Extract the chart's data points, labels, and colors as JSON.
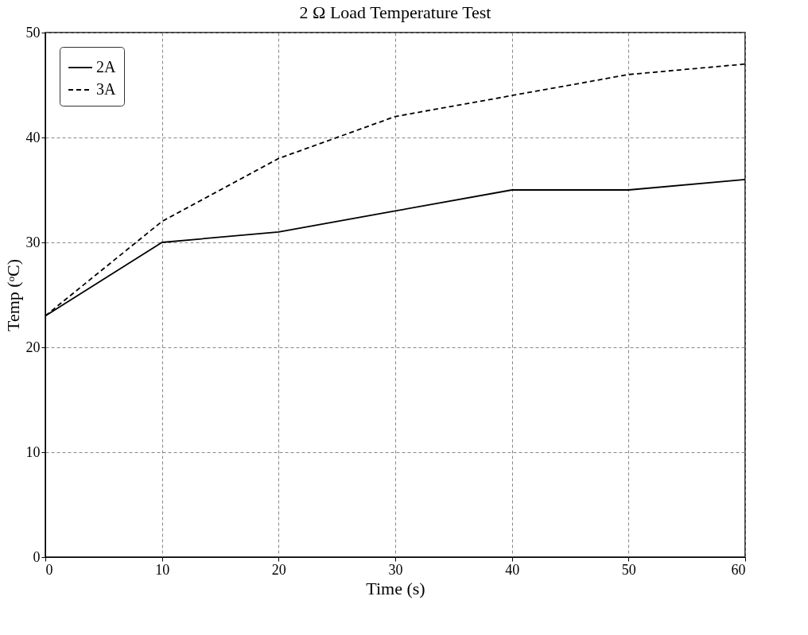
{
  "chart_data": {
    "type": "line",
    "title": "2 Ω Load Temperature Test",
    "xlabel": "Time (s)",
    "ylabel": "Temp (ᵒC)",
    "x": [
      0,
      10,
      20,
      30,
      40,
      50,
      60
    ],
    "series": [
      {
        "name": "2A",
        "color": "#000000",
        "line_style": "solid",
        "values": [
          23,
          30,
          31,
          33,
          35,
          35,
          36
        ]
      },
      {
        "name": "3A",
        "color": "#000000",
        "line_style": "dashed",
        "values": [
          23,
          32,
          38,
          42,
          44,
          46,
          47
        ]
      }
    ],
    "xlim": [
      0,
      60
    ],
    "xticks": [
      0,
      10,
      20,
      30,
      40,
      50,
      60
    ],
    "ylim": [
      0,
      50
    ],
    "yticks": [
      0,
      10,
      20,
      30,
      40,
      50
    ],
    "grid": true,
    "legend": "top left",
    "marker": "none"
  }
}
